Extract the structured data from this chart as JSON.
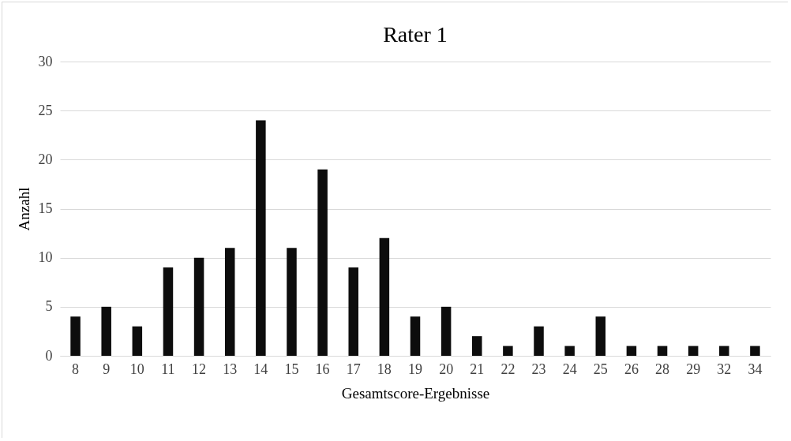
{
  "chart_data": {
    "type": "bar",
    "title": "Rater 1",
    "xlabel": "Gesamtscore-Ergebnisse",
    "ylabel": "Anzahl",
    "categories": [
      "8",
      "9",
      "10",
      "11",
      "12",
      "13",
      "14",
      "15",
      "16",
      "17",
      "18",
      "19",
      "20",
      "21",
      "22",
      "23",
      "24",
      "25",
      "26",
      "28",
      "29",
      "32",
      "34"
    ],
    "values": [
      4,
      5,
      3,
      9,
      10,
      11,
      24,
      11,
      19,
      9,
      12,
      4,
      5,
      2,
      1,
      3,
      1,
      4,
      1,
      1,
      1,
      1,
      1
    ],
    "color": "#0d0d0d",
    "ylim": [
      0,
      30
    ],
    "yticks": [
      0,
      5,
      10,
      15,
      20,
      25,
      30
    ],
    "grid": "y"
  }
}
